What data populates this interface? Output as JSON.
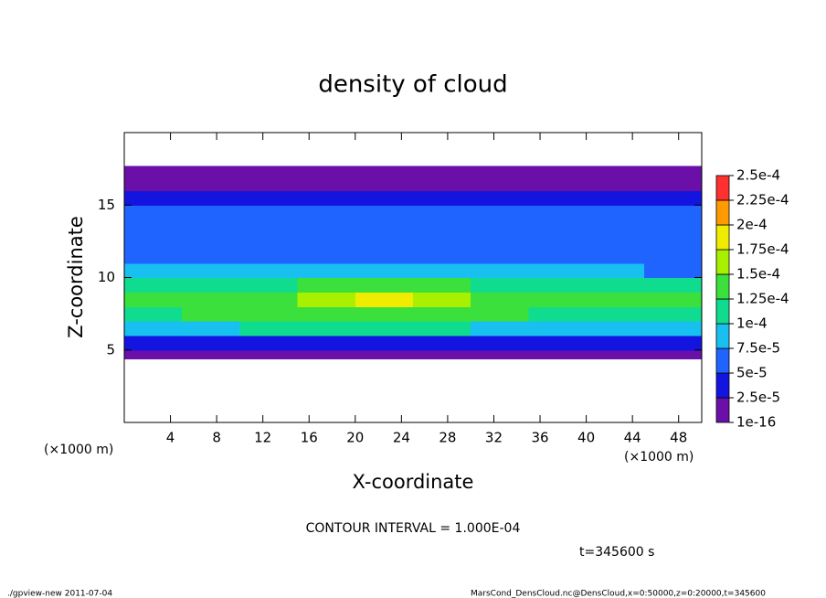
{
  "chart_data": {
    "type": "heatmap",
    "title": "density of cloud",
    "x_label": "X-coordinate",
    "y_label": "Z-coordinate",
    "x_unit": "(×1000 m)",
    "x_unit_right": "(×1000 m)",
    "contour_note": "CONTOUR INTERVAL = 1.000E-04",
    "time_note": "t=345600 s",
    "footer_left": "./gpview-new  2011-07-04",
    "footer_right": "MarsCond_DensCloud.nc@DensCloud,x=0:50000,z=0:20000,t=345600",
    "xlim": [
      0,
      50
    ],
    "ylim": [
      0,
      20
    ],
    "xticks": [
      4,
      8,
      12,
      16,
      20,
      24,
      28,
      32,
      36,
      40,
      44,
      48
    ],
    "yticks": [
      5,
      10,
      15
    ],
    "x_edges": [
      0,
      5,
      10,
      15,
      20,
      25,
      30,
      35,
      40,
      45,
      50
    ],
    "y_edges": [
      4.4,
      5,
      6,
      7,
      8,
      9,
      10,
      11,
      12,
      13,
      14,
      15,
      16,
      17,
      17.7
    ],
    "z": [
      [
        1e-05,
        1e-05,
        1e-05,
        1e-05,
        1e-05,
        1e-05,
        1e-05,
        1e-05,
        1e-05,
        1e-05
      ],
      [
        4e-05,
        4e-05,
        4e-05,
        4e-05,
        4e-05,
        4e-05,
        4e-05,
        4e-05,
        4e-05,
        4e-05
      ],
      [
        9e-05,
        9.5e-05,
        0.0001,
        0.0001,
        0.0001,
        0.0001,
        9e-05,
        9e-05,
        9e-05,
        9e-05
      ],
      [
        0.00012,
        0.000125,
        0.00013,
        0.000135,
        0.00014,
        0.00013,
        0.000125,
        0.00012,
        0.00012,
        0.000115
      ],
      [
        0.00013,
        0.000135,
        0.00014,
        0.00016,
        0.000175,
        0.00016,
        0.000145,
        0.00013,
        0.00013,
        0.000125
      ],
      [
        0.000115,
        0.00011,
        0.000115,
        0.000135,
        0.00014,
        0.00013,
        0.00012,
        0.00011,
        0.00011,
        0.000105
      ],
      [
        8e-05,
        7.5e-05,
        8e-05,
        9e-05,
        9e-05,
        8.5e-05,
        8e-05,
        7.5e-05,
        7.5e-05,
        7e-05
      ],
      [
        6.5e-05,
        6.5e-05,
        7e-05,
        7e-05,
        6.5e-05,
        6.5e-05,
        6.5e-05,
        6.5e-05,
        6.5e-05,
        6.5e-05
      ],
      [
        6.5e-05,
        6.5e-05,
        6.5e-05,
        6.5e-05,
        6.5e-05,
        6.5e-05,
        6.5e-05,
        6e-05,
        6e-05,
        6.5e-05
      ],
      [
        6e-05,
        6.5e-05,
        6e-05,
        6e-05,
        6e-05,
        6e-05,
        6e-05,
        6e-05,
        5.5e-05,
        6e-05
      ],
      [
        6e-05,
        6e-05,
        6e-05,
        6e-05,
        6e-05,
        6e-05,
        6e-05,
        6e-05,
        5.5e-05,
        6e-05
      ],
      [
        4e-05,
        4e-05,
        4e-05,
        4e-05,
        4e-05,
        4e-05,
        4e-05,
        4e-05,
        4e-05,
        4e-05
      ],
      [
        1.2e-05,
        1.2e-05,
        1.2e-05,
        1.2e-05,
        1.2e-05,
        1.2e-05,
        1.2e-05,
        1.2e-05,
        1.2e-05,
        1.2e-05
      ],
      [
        5e-06,
        5e-06,
        5e-06,
        5e-06,
        5e-06,
        5e-06,
        5e-06,
        5e-06,
        5e-06,
        5e-06
      ]
    ],
    "levels": [
      {
        "value": 1e-16,
        "label": "1e-16"
      },
      {
        "value": 2.5e-05,
        "label": "2.5e-5"
      },
      {
        "value": 5e-05,
        "label": "5e-5"
      },
      {
        "value": 7.5e-05,
        "label": "7.5e-5"
      },
      {
        "value": 0.0001,
        "label": "1e-4"
      },
      {
        "value": 0.000125,
        "label": "1.25e-4"
      },
      {
        "value": 0.00015,
        "label": "1.5e-4"
      },
      {
        "value": 0.000175,
        "label": "1.75e-4"
      },
      {
        "value": 0.0002,
        "label": "2e-4"
      },
      {
        "value": 0.000225,
        "label": "2.25e-4"
      },
      {
        "value": 0.00025,
        "label": "2.5e-4"
      }
    ],
    "colors": [
      "#6a0fa8",
      "#1414e0",
      "#1f64ff",
      "#18c0f0",
      "#10dc90",
      "#3ce03c",
      "#a8f000",
      "#f0ec00",
      "#ff9a00",
      "#ff3030"
    ]
  }
}
